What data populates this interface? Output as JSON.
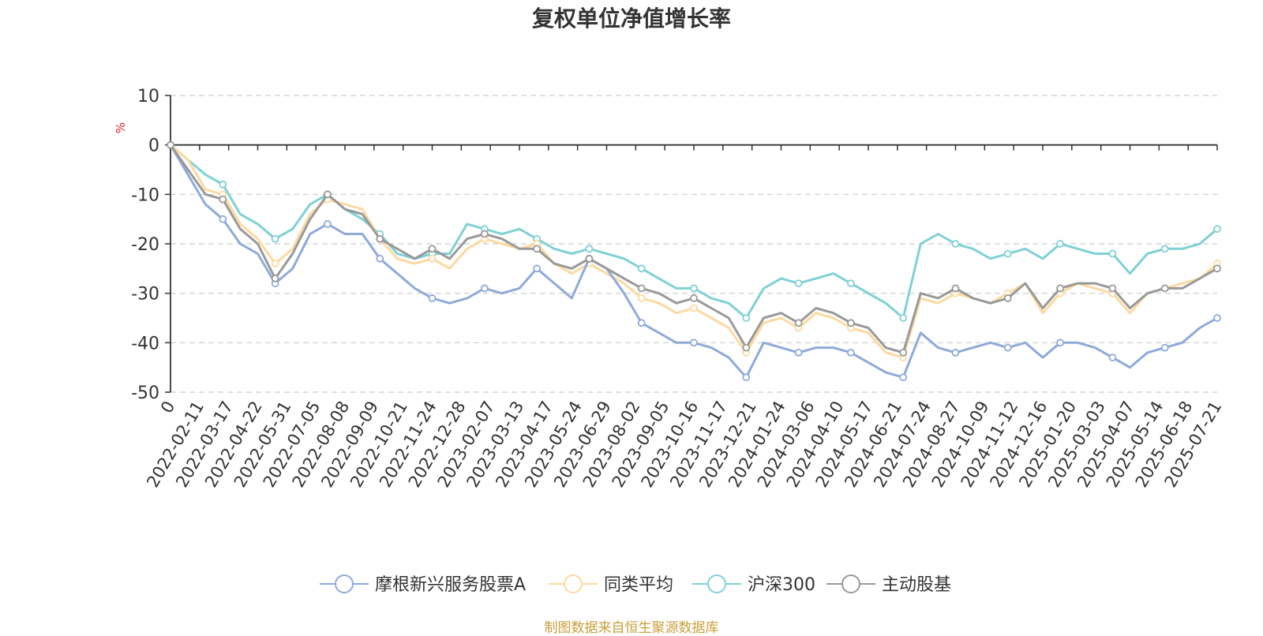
{
  "chart_data": {
    "type": "line",
    "title": "复权单位净值增长率",
    "ylabel": "%",
    "ylim": [
      -50,
      10
    ],
    "yticks": [
      10,
      0,
      -10,
      -20,
      -30,
      -40,
      -50
    ],
    "x_start": "0",
    "x_ticks": [
      "2022-02-11",
      "2022-03-17",
      "2022-04-22",
      "2022-05-31",
      "2022-07-05",
      "2022-08-08",
      "2022-09-09",
      "2022-10-21",
      "2022-11-24",
      "2022-12-28",
      "2023-02-07",
      "2023-03-13",
      "2023-04-17",
      "2023-05-24",
      "2023-06-29",
      "2023-08-02",
      "2023-09-05",
      "2023-10-16",
      "2023-11-17",
      "2023-12-21",
      "2024-01-24",
      "2024-03-06",
      "2024-04-10",
      "2024-05-17",
      "2024-06-21",
      "2024-07-24",
      "2024-08-27",
      "2024-10-09",
      "2024-11-12",
      "2024-12-16",
      "2025-01-20",
      "2025-03-03",
      "2025-04-07",
      "2025-05-14",
      "2025-06-18",
      "2025-07-21"
    ],
    "grid": true,
    "legend_position": "bottom",
    "source": "制图数据来自恒生聚源数据库",
    "series": [
      {
        "name": "摩根新兴服务股票A",
        "color": "#8eaadb",
        "values": [
          0,
          -6,
          -12,
          -15,
          -20,
          -22,
          -28,
          -25,
          -18,
          -16,
          -18,
          -18,
          -23,
          -26,
          -29,
          -31,
          -32,
          -31,
          -29,
          -30,
          -29,
          -25,
          -28,
          -31,
          -23,
          -25,
          -30,
          -36,
          -38,
          -40,
          -40,
          -41,
          -43,
          -47,
          -40,
          -41,
          -42,
          -41,
          -41,
          -42,
          -44,
          -46,
          -47,
          -38,
          -41,
          -42,
          -41,
          -40,
          -41,
          -40,
          -43,
          -40,
          -40,
          -41,
          -43,
          -45,
          -42,
          -41,
          -40,
          -37,
          -35
        ]
      },
      {
        "name": "同类平均",
        "color": "#fdd9a0",
        "values": [
          0,
          -3,
          -9,
          -10,
          -16,
          -19,
          -24,
          -21,
          -14,
          -11,
          -12,
          -13,
          -19,
          -23,
          -24,
          -23,
          -25,
          -21,
          -19,
          -20,
          -21,
          -20,
          -24,
          -26,
          -24,
          -26,
          -28,
          -31,
          -32,
          -34,
          -33,
          -35,
          -37,
          -42,
          -36,
          -35,
          -37,
          -34,
          -35,
          -37,
          -38,
          -42,
          -43,
          -31,
          -32,
          -30,
          -31,
          -32,
          -30,
          -28,
          -34,
          -30,
          -28,
          -29,
          -30,
          -34,
          -30,
          -29,
          -28,
          -27,
          -24
        ]
      },
      {
        "name": "沪深300",
        "color": "#7fd1d5",
        "values": [
          0,
          -3,
          -6,
          -8,
          -14,
          -16,
          -19,
          -17,
          -12,
          -10,
          -13,
          -15,
          -18,
          -22,
          -23,
          -22,
          -22,
          -16,
          -17,
          -18,
          -17,
          -19,
          -21,
          -22,
          -21,
          -22,
          -23,
          -25,
          -27,
          -29,
          -29,
          -31,
          -32,
          -35,
          -29,
          -27,
          -28,
          -27,
          -26,
          -28,
          -30,
          -32,
          -35,
          -20,
          -18,
          -20,
          -21,
          -23,
          -22,
          -21,
          -23,
          -20,
          -21,
          -22,
          -22,
          -26,
          -22,
          -21,
          -21,
          -20,
          -17
        ]
      },
      {
        "name": "主动股基",
        "color": "#999999",
        "values": [
          0,
          -5,
          -10,
          -11,
          -17,
          -20,
          -27,
          -22,
          -15,
          -10,
          -13,
          -14,
          -19,
          -21,
          -23,
          -21,
          -23,
          -19,
          -18,
          -19,
          -21,
          -21,
          -24,
          -25,
          -23,
          -25,
          -27,
          -29,
          -30,
          -32,
          -31,
          -33,
          -35,
          -41,
          -35,
          -34,
          -36,
          -33,
          -34,
          -36,
          -37,
          -41,
          -42,
          -30,
          -31,
          -29,
          -31,
          -32,
          -31,
          -28,
          -33,
          -29,
          -28,
          -28,
          -29,
          -33,
          -30,
          -29,
          -29,
          -27,
          -25
        ]
      }
    ]
  }
}
